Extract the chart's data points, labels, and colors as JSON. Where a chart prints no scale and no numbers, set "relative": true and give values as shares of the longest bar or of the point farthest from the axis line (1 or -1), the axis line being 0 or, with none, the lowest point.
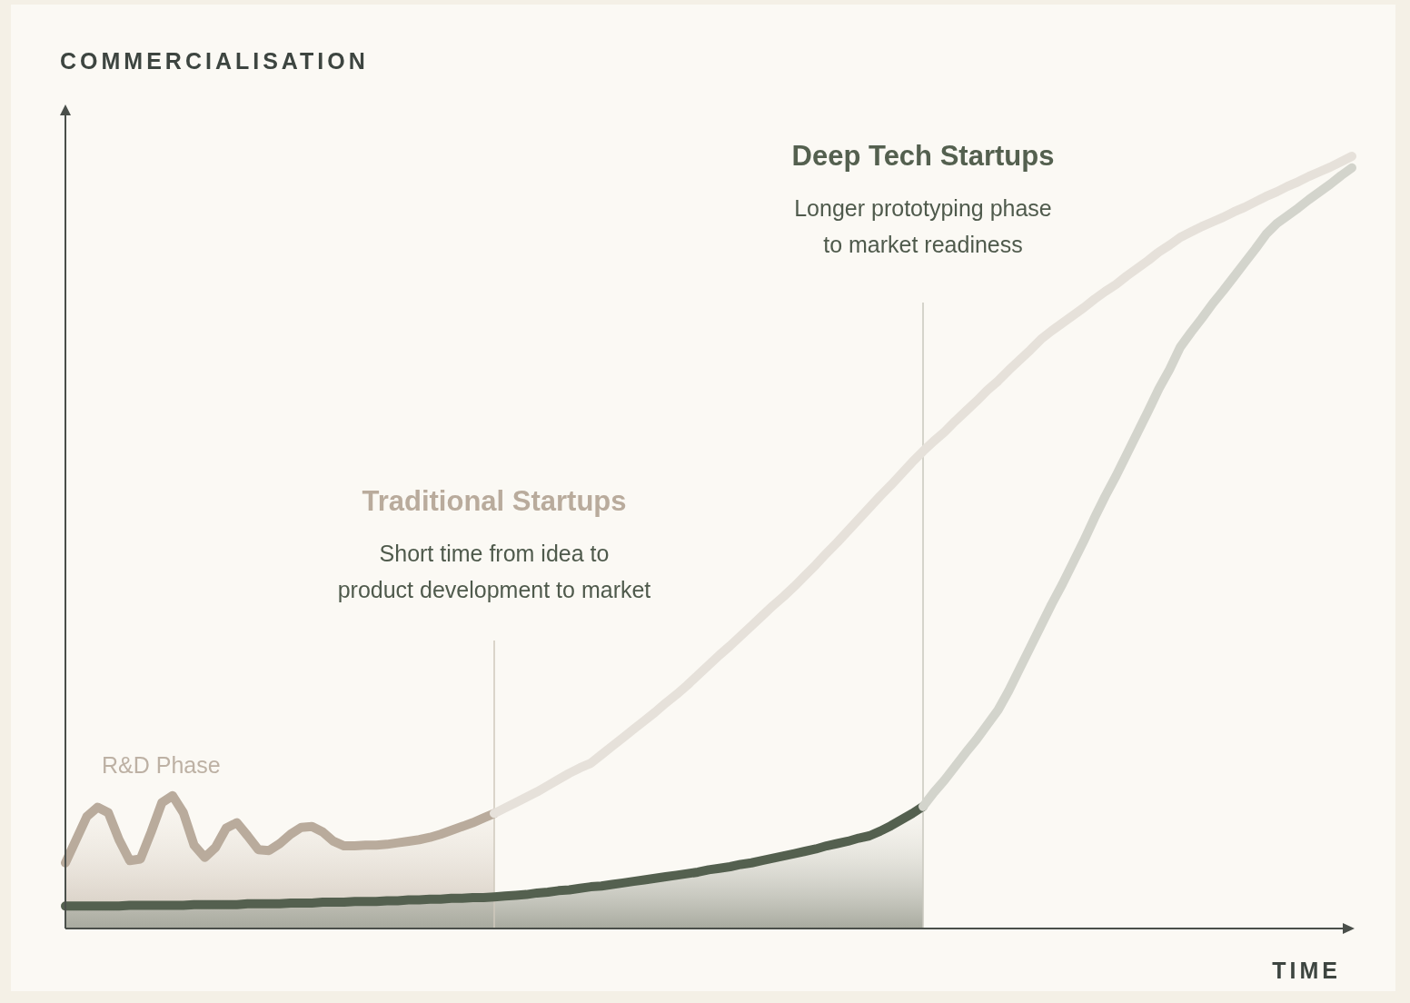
{
  "chart_data": {
    "type": "line",
    "relative": true,
    "xlabel": "TIME",
    "ylabel": "COMMERCIALISATION",
    "annotations": [
      "R&D Phase",
      "Short time from idea to product development to market",
      "Longer prototyping phase to market readiness"
    ],
    "categories": [
      null,
      null,
      null,
      null,
      null,
      null,
      null,
      null,
      null,
      null,
      null,
      null,
      null,
      null,
      null,
      null,
      null,
      null,
      null,
      null,
      null,
      null,
      null,
      null,
      null,
      null,
      null,
      null,
      null,
      null,
      null,
      null,
      null,
      null,
      null,
      null,
      null,
      null,
      null,
      null,
      null,
      null,
      null,
      null,
      null,
      null,
      null,
      null,
      null,
      null,
      null,
      null,
      null,
      null,
      null,
      null,
      null,
      null,
      null,
      null,
      null,
      null,
      null,
      null,
      null,
      null,
      null,
      null,
      null,
      null,
      null,
      null,
      null,
      null,
      null,
      null,
      null,
      null,
      null,
      null,
      null,
      null,
      null,
      null,
      null,
      null,
      null,
      null,
      null,
      null,
      null,
      null,
      null,
      null,
      null,
      null,
      null,
      null,
      null,
      null,
      null,
      null,
      null,
      null,
      null,
      null,
      null,
      null,
      null,
      null,
      null,
      null,
      null,
      null,
      null,
      null,
      null,
      null,
      null,
      null,
      null
    ],
    "series": [
      {
        "name": "Traditional Startups",
        "type": "area",
        "color": "#b9ab9c",
        "values": [
          0.085,
          0.115,
          0.145,
          0.157,
          0.15,
          0.115,
          0.088,
          0.09,
          0.125,
          0.163,
          0.172,
          0.15,
          0.108,
          0.092,
          0.105,
          0.13,
          0.137,
          0.12,
          0.102,
          0.101,
          0.11,
          0.122,
          0.131,
          0.132,
          0.125,
          0.113,
          0.107,
          0.107,
          0.108,
          0.108,
          0.109,
          0.111,
          0.113,
          0.115,
          0.118,
          0.122,
          0.127,
          0.132,
          0.137,
          0.143,
          0.149,
          null,
          null,
          null,
          null,
          null,
          null,
          null,
          null,
          null,
          null,
          null,
          null,
          null,
          null,
          null,
          null,
          null,
          null,
          null,
          null,
          null,
          null,
          null,
          null,
          null,
          null,
          null,
          null,
          null,
          null,
          null,
          null,
          null,
          null,
          null,
          null,
          null,
          null,
          null,
          null,
          null,
          null,
          null,
          null,
          null,
          null,
          null,
          null,
          null,
          null,
          null,
          null,
          null,
          null,
          null,
          null,
          null,
          null,
          null,
          null,
          null,
          null,
          null,
          null,
          null,
          null,
          null,
          null,
          null,
          null,
          null,
          null,
          null,
          null,
          null,
          null,
          null,
          null,
          null,
          null
        ]
      },
      {
        "type": "line",
        "color": "#e6e1da",
        "values": [
          null,
          null,
          null,
          null,
          null,
          null,
          null,
          null,
          null,
          null,
          null,
          null,
          null,
          null,
          null,
          null,
          null,
          null,
          null,
          null,
          null,
          null,
          null,
          null,
          null,
          null,
          null,
          null,
          null,
          null,
          null,
          null,
          null,
          null,
          null,
          null,
          null,
          null,
          null,
          null,
          0.149,
          0.156,
          0.163,
          0.17,
          0.177,
          0.185,
          0.193,
          0.201,
          0.208,
          0.214,
          0.225,
          0.236,
          0.247,
          0.258,
          0.269,
          0.28,
          0.292,
          0.303,
          0.315,
          0.328,
          0.341,
          0.354,
          0.366,
          0.379,
          0.392,
          0.405,
          0.418,
          0.43,
          0.443,
          0.457,
          0.471,
          0.486,
          0.5,
          0.515,
          0.53,
          0.545,
          0.56,
          0.574,
          0.589,
          0.604,
          0.618,
          0.631,
          0.643,
          0.657,
          0.67,
          0.683,
          0.697,
          0.709,
          0.723,
          0.736,
          0.749,
          0.763,
          0.774,
          0.784,
          0.794,
          0.804,
          0.815,
          0.825,
          0.834,
          0.845,
          0.855,
          0.865,
          0.876,
          0.885,
          0.895,
          0.902,
          0.909,
          0.915,
          0.921,
          0.928,
          0.934,
          0.941,
          0.948,
          0.954,
          0.961,
          0.967,
          0.974,
          0.98,
          0.986,
          0.993,
          1.0
        ]
      },
      {
        "name": "Deep Tech Startups",
        "type": "area",
        "color": "#54604f",
        "values": [
          0.029,
          0.029,
          0.029,
          0.029,
          0.029,
          0.029,
          0.03,
          0.03,
          0.03,
          0.03,
          0.03,
          0.03,
          0.031,
          0.031,
          0.031,
          0.031,
          0.031,
          0.032,
          0.032,
          0.032,
          0.032,
          0.033,
          0.033,
          0.033,
          0.034,
          0.034,
          0.034,
          0.035,
          0.035,
          0.035,
          0.036,
          0.036,
          0.037,
          0.037,
          0.038,
          0.038,
          0.039,
          0.039,
          0.04,
          0.04,
          0.041,
          0.042,
          0.043,
          0.044,
          0.046,
          0.047,
          0.049,
          0.05,
          0.052,
          0.054,
          0.055,
          0.057,
          0.059,
          0.061,
          0.063,
          0.065,
          0.067,
          0.069,
          0.071,
          0.073,
          0.076,
          0.078,
          0.08,
          0.083,
          0.085,
          0.088,
          0.091,
          0.094,
          0.097,
          0.1,
          0.103,
          0.107,
          0.11,
          0.113,
          0.117,
          0.12,
          0.126,
          0.133,
          0.141,
          0.149,
          0.158,
          null,
          null,
          null,
          null,
          null,
          null,
          null,
          null,
          null,
          null,
          null,
          null,
          null,
          null,
          null,
          null,
          null,
          null,
          null,
          null,
          null,
          null,
          null,
          null,
          null,
          null,
          null,
          null,
          null,
          null,
          null,
          null,
          null,
          null,
          null,
          null,
          null,
          null,
          null,
          null
        ]
      },
      {
        "type": "line",
        "color": "#d3d4cc",
        "values": [
          null,
          null,
          null,
          null,
          null,
          null,
          null,
          null,
          null,
          null,
          null,
          null,
          null,
          null,
          null,
          null,
          null,
          null,
          null,
          null,
          null,
          null,
          null,
          null,
          null,
          null,
          null,
          null,
          null,
          null,
          null,
          null,
          null,
          null,
          null,
          null,
          null,
          null,
          null,
          null,
          null,
          null,
          null,
          null,
          null,
          null,
          null,
          null,
          null,
          null,
          null,
          null,
          null,
          null,
          null,
          null,
          null,
          null,
          null,
          null,
          null,
          null,
          null,
          null,
          null,
          null,
          null,
          null,
          null,
          null,
          null,
          null,
          null,
          null,
          null,
          null,
          null,
          null,
          null,
          null,
          0.158,
          0.176,
          0.192,
          0.21,
          0.228,
          0.245,
          0.264,
          0.283,
          0.308,
          0.336,
          0.364,
          0.392,
          0.42,
          0.446,
          0.474,
          0.502,
          0.532,
          0.56,
          0.586,
          0.614,
          0.642,
          0.67,
          0.699,
          0.724,
          0.753,
          0.772,
          0.79,
          0.809,
          0.826,
          0.844,
          0.862,
          0.88,
          0.899,
          0.913,
          0.923,
          0.933,
          0.944,
          0.954,
          0.964,
          0.975,
          0.985
        ]
      }
    ]
  }
}
